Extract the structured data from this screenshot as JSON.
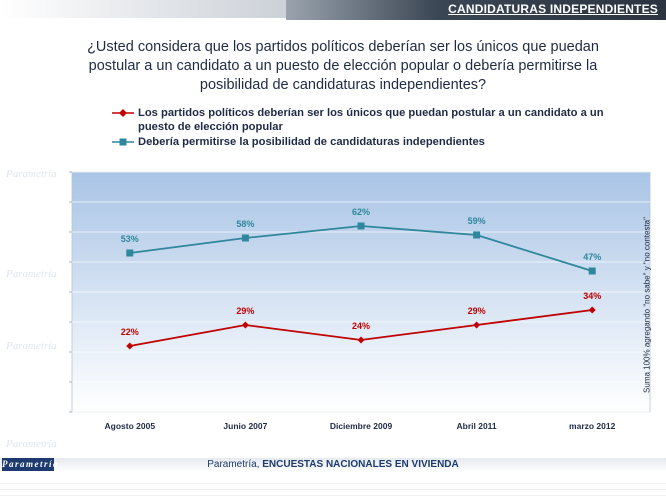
{
  "header": {
    "title": "CANDIDATURAS INDEPENDIENTES"
  },
  "question": "¿Usted considera que los partidos políticos deberían ser los únicos que puedan postular a un candidato a un puesto de elección popular o debería permitirse la posibilidad de candidaturas independientes?",
  "side_note": "Suma 100% agregando \"no sabe\" y \"no contesta\"",
  "footer": {
    "brand": "Parametría",
    "source_prefix": "Parametría, ",
    "source_main": "ENCUESTAS NACIONALES EN VIVIENDA"
  },
  "watermark": "Parametría",
  "colors": {
    "series_red": "#c00000",
    "series_teal": "#2e879c",
    "plot_top": "#a9c4e6",
    "plot_bottom": "#ffffff"
  },
  "chart_data": {
    "type": "line",
    "categories": [
      "Agosto 2005",
      "Junio 2007",
      "Diciembre 2009",
      "Abril 2011",
      "marzo 2012"
    ],
    "ylim": [
      0,
      80
    ],
    "grid": true,
    "legend_position": "top",
    "series": [
      {
        "name": "Los partidos políticos deberían ser los únicos que puedan postular a un candidato a un puesto de elección popular",
        "values": [
          22,
          29,
          24,
          29,
          34
        ],
        "labels": [
          "22%",
          "29%",
          "24%",
          "29%",
          "34%"
        ],
        "color": "#c00000",
        "marker": "diamond"
      },
      {
        "name": "Debería permitirse la posibilidad de candidaturas independientes",
        "values": [
          53,
          58,
          62,
          59,
          47
        ],
        "labels": [
          "53%",
          "58%",
          "62%",
          "59%",
          "47%"
        ],
        "color": "#2e879c",
        "marker": "square"
      }
    ]
  }
}
